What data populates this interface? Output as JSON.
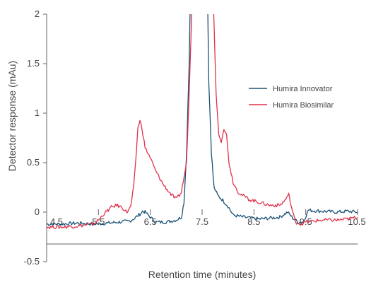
{
  "chart_data": {
    "type": "line",
    "title": "",
    "xlabel": "Retention time (minutes)",
    "ylabel": "Detector response (mAu)",
    "xlim": [
      4.5,
      10.5
    ],
    "ylim": [
      -0.5,
      2
    ],
    "x_ticks": [
      "4.5",
      "5.5",
      "6.5",
      "7.5",
      "8.5",
      "9.5",
      "10.5"
    ],
    "y_ticks": [
      "-0.5",
      "0",
      "0.5",
      "1",
      "1.5",
      "2"
    ],
    "grid": false,
    "legend_position": "right",
    "series": [
      {
        "name": "Humira Innovator",
        "color": "#1a5276",
        "points": [
          [
            4.5,
            -0.12
          ],
          [
            4.8,
            -0.12
          ],
          [
            5.1,
            -0.11
          ],
          [
            5.4,
            -0.12
          ],
          [
            5.7,
            -0.11
          ],
          [
            5.9,
            -0.1
          ],
          [
            6.1,
            -0.09
          ],
          [
            6.2,
            -0.06
          ],
          [
            6.3,
            -0.02
          ],
          [
            6.35,
            0.01
          ],
          [
            6.4,
            0.0
          ],
          [
            6.5,
            -0.05
          ],
          [
            6.6,
            -0.1
          ],
          [
            6.8,
            -0.1
          ],
          [
            7.0,
            -0.08
          ],
          [
            7.1,
            -0.05
          ],
          [
            7.15,
            0.1
          ],
          [
            7.2,
            0.6
          ],
          [
            7.25,
            1.5
          ],
          [
            7.28,
            2.4
          ],
          [
            7.6,
            2.4
          ],
          [
            7.63,
            1.3
          ],
          [
            7.68,
            0.6
          ],
          [
            7.73,
            0.25
          ],
          [
            7.8,
            0.17
          ],
          [
            7.9,
            0.12
          ],
          [
            8.0,
            0.06
          ],
          [
            8.1,
            -0.03
          ],
          [
            8.3,
            -0.05
          ],
          [
            8.6,
            -0.07
          ],
          [
            8.8,
            -0.06
          ],
          [
            9.0,
            -0.05
          ],
          [
            9.15,
            0.0
          ],
          [
            9.25,
            -0.06
          ],
          [
            9.35,
            -0.1
          ],
          [
            9.45,
            -0.1
          ],
          [
            9.55,
            0.02
          ],
          [
            9.8,
            0.01
          ],
          [
            10.1,
            0.0
          ],
          [
            10.3,
            0.01
          ],
          [
            10.5,
            0.0
          ]
        ]
      },
      {
        "name": "Humira Biosimilar",
        "color": "#e0314b",
        "points": [
          [
            4.5,
            -0.15
          ],
          [
            4.8,
            -0.15
          ],
          [
            5.1,
            -0.14
          ],
          [
            5.4,
            -0.12
          ],
          [
            5.5,
            -0.08
          ],
          [
            5.6,
            -0.02
          ],
          [
            5.75,
            0.05
          ],
          [
            5.85,
            0.07
          ],
          [
            5.95,
            0.05
          ],
          [
            6.05,
            0.0
          ],
          [
            6.12,
            0.05
          ],
          [
            6.18,
            0.25
          ],
          [
            6.23,
            0.6
          ],
          [
            6.26,
            0.85
          ],
          [
            6.3,
            0.92
          ],
          [
            6.34,
            0.85
          ],
          [
            6.4,
            0.65
          ],
          [
            6.5,
            0.55
          ],
          [
            6.6,
            0.42
          ],
          [
            6.75,
            0.28
          ],
          [
            6.9,
            0.18
          ],
          [
            7.0,
            0.13
          ],
          [
            7.1,
            0.2
          ],
          [
            7.2,
            0.5
          ],
          [
            7.25,
            1.2
          ],
          [
            7.3,
            2.0
          ],
          [
            7.33,
            2.4
          ],
          [
            7.7,
            2.4
          ],
          [
            7.73,
            1.9
          ],
          [
            7.77,
            1.2
          ],
          [
            7.82,
            0.8
          ],
          [
            7.87,
            0.72
          ],
          [
            7.92,
            0.85
          ],
          [
            7.97,
            0.78
          ],
          [
            8.02,
            0.5
          ],
          [
            8.1,
            0.3
          ],
          [
            8.2,
            0.2
          ],
          [
            8.4,
            0.13
          ],
          [
            8.6,
            0.1
          ],
          [
            8.8,
            0.07
          ],
          [
            9.0,
            0.07
          ],
          [
            9.1,
            0.12
          ],
          [
            9.17,
            0.18
          ],
          [
            9.22,
            0.06
          ],
          [
            9.3,
            -0.1
          ],
          [
            9.4,
            -0.12
          ],
          [
            9.5,
            -0.1
          ],
          [
            9.8,
            -0.08
          ],
          [
            10.1,
            -0.08
          ],
          [
            10.3,
            -0.07
          ],
          [
            10.5,
            -0.05
          ]
        ]
      }
    ]
  }
}
